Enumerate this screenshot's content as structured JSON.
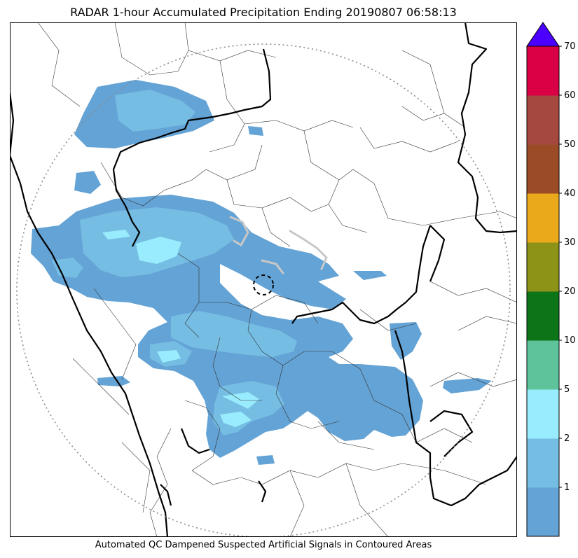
{
  "title": "RADAR 1-hour Accumulated Precipitation Ending 20190807 06:58:13",
  "footer_note": "Automated QC Dampened Suspected Artificial Signals in Contoured Areas",
  "map": {
    "radar_range_ring": "dotted",
    "radar_site_marker": "dashed-circle",
    "precip_fill_colors": [
      "#64a3d5",
      "#75bde3",
      "#99ecfd"
    ]
  },
  "colorbar": {
    "extend": "max",
    "extend_color": "#4b00ff",
    "bins": [
      {
        "label": "",
        "color": "#64a3d5"
      },
      {
        "label": "1",
        "color": "#75bde3"
      },
      {
        "label": "2",
        "color": "#99ecfd"
      },
      {
        "label": "5",
        "color": "#5ec39b"
      },
      {
        "label": "10",
        "color": "#0d7517"
      },
      {
        "label": "20",
        "color": "#8c9317"
      },
      {
        "label": "30",
        "color": "#e9a91b"
      },
      {
        "label": "40",
        "color": "#9b4b26"
      },
      {
        "label": "50",
        "color": "#a54840"
      },
      {
        "label": "60",
        "color": "#d90045"
      }
    ],
    "top_label": "70"
  }
}
